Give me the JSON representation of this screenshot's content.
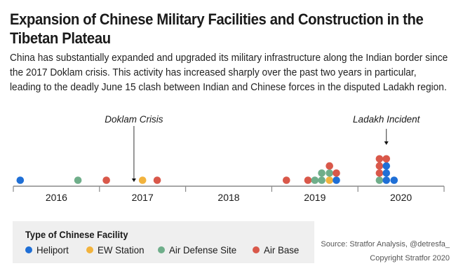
{
  "header": {
    "title": "Expansion of Chinese Military Facilities and Construction in the Tibetan Plateau",
    "subtitle": "China has substantially expanded and upgraded its military infrastructure along the Indian border since the 2017 Doklam crisis. This activity has increased sharply over the past two years in particular, leading to the deadly June 15 clash between Indian and Chinese forces in the disputed Ladakh region."
  },
  "legend": {
    "title": "Type of Chinese Facility",
    "items": [
      {
        "key": "heliport",
        "label": "Heliport",
        "color": "#1f6fd6"
      },
      {
        "key": "ew",
        "label": "EW Station",
        "color": "#f2b33d"
      },
      {
        "key": "airdefense",
        "label": "Air Defense Site",
        "color": "#6fae8a"
      },
      {
        "key": "airbase",
        "label": "Air Base",
        "color": "#d9584a"
      }
    ]
  },
  "footer": {
    "source": "Source: Stratfor Analysis, @detresfa_",
    "copyright": "Copyright Stratfor 2020"
  },
  "chart_data": {
    "type": "scatter",
    "subtype": "dot-timeline",
    "title": "Expansion of Chinese Military Facilities and Construction in the Tibetan Plateau",
    "x_axis": {
      "label": "",
      "ticks": [
        "2016",
        "2017",
        "2018",
        "2019",
        "2020"
      ],
      "range": [
        2016.0,
        2021.0
      ]
    },
    "y_axis": {
      "label": "",
      "meaning": "stacked count of facilities"
    },
    "grid": false,
    "legend_position": "bottom-left",
    "annotations": [
      {
        "label": "Doklam Crisis",
        "x": 2017.4
      },
      {
        "label": "Ladakh Incident",
        "x": 2020.33
      }
    ],
    "points": [
      {
        "x": 2016.08,
        "stack": 0,
        "type": "heliport"
      },
      {
        "x": 2016.75,
        "stack": 0,
        "type": "airdefense"
      },
      {
        "x": 2017.08,
        "stack": 0,
        "type": "airbase"
      },
      {
        "x": 2017.5,
        "stack": 0,
        "type": "ew"
      },
      {
        "x": 2017.67,
        "stack": 0,
        "type": "airbase"
      },
      {
        "x": 2019.17,
        "stack": 0,
        "type": "airbase"
      },
      {
        "x": 2019.42,
        "stack": 0,
        "type": "airbase"
      },
      {
        "x": 2019.5,
        "stack": 0,
        "type": "airdefense"
      },
      {
        "x": 2019.58,
        "stack": 0,
        "type": "airdefense"
      },
      {
        "x": 2019.58,
        "stack": 1,
        "type": "airdefense"
      },
      {
        "x": 2019.67,
        "stack": 0,
        "type": "ew"
      },
      {
        "x": 2019.67,
        "stack": 1,
        "type": "airdefense"
      },
      {
        "x": 2019.67,
        "stack": 2,
        "type": "airbase"
      },
      {
        "x": 2019.75,
        "stack": 0,
        "type": "heliport"
      },
      {
        "x": 2019.75,
        "stack": 1,
        "type": "airbase"
      },
      {
        "x": 2020.25,
        "stack": 0,
        "type": "airdefense"
      },
      {
        "x": 2020.25,
        "stack": 1,
        "type": "airbase"
      },
      {
        "x": 2020.25,
        "stack": 2,
        "type": "airbase"
      },
      {
        "x": 2020.25,
        "stack": 3,
        "type": "airbase"
      },
      {
        "x": 2020.33,
        "stack": 0,
        "type": "heliport"
      },
      {
        "x": 2020.33,
        "stack": 1,
        "type": "heliport"
      },
      {
        "x": 2020.33,
        "stack": 2,
        "type": "heliport"
      },
      {
        "x": 2020.33,
        "stack": 3,
        "type": "airbase"
      },
      {
        "x": 2020.42,
        "stack": 0,
        "type": "heliport"
      }
    ]
  }
}
